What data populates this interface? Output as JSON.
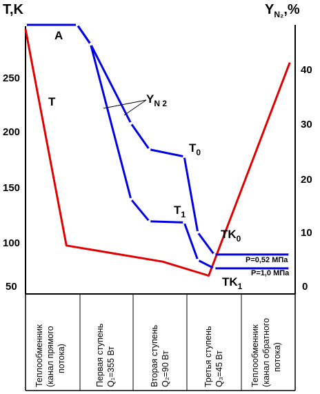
{
  "chart_data": {
    "type": "line",
    "left_axis": {
      "title": "T,K",
      "ticks": [
        "50",
        "100",
        "150",
        "200",
        "250"
      ],
      "ylim": [
        50,
        300
      ]
    },
    "right_axis": {
      "title_main": "Y",
      "title_sub": "N₂",
      "title_unit": ",%",
      "ticks": [
        "0",
        "10",
        "20",
        "30",
        "40"
      ],
      "ylim": [
        0,
        47.5
      ]
    },
    "stages": [
      {
        "id": "hx-forward",
        "lines": [
          "Теплообменник",
          "(канал прямого",
          "потока)"
        ]
      },
      {
        "id": "stage-1",
        "lines": [
          "Первая ступень",
          "Q₁=355 Вт"
        ]
      },
      {
        "id": "stage-2",
        "lines": [
          "Вторая ступень",
          "Q₂=90 Вт"
        ]
      },
      {
        "id": "stage-3",
        "lines": [
          "Третья ступень",
          "Q₃=45 Вт"
        ]
      },
      {
        "id": "hx-return",
        "lines": [
          "Теплообменник",
          "(канал обратного",
          "потока)"
        ]
      }
    ],
    "series": [
      {
        "name": "T",
        "color": "#e00000",
        "axis": "left",
        "points": [
          [
            0,
            296
          ],
          [
            0.75,
            95
          ],
          [
            2.55,
            80
          ],
          [
            3.4,
            67
          ],
          [
            4.9,
            265
          ]
        ]
      },
      {
        "name": "Y_N2 (P=0.52 MPa)",
        "color": "#0000e0",
        "axis": "right",
        "points": [
          [
            0,
            47.5
          ],
          [
            0.95,
            47.5
          ],
          [
            1.2,
            44
          ],
          [
            1.96,
            29.7
          ],
          [
            2.3,
            25
          ],
          [
            2.95,
            23.7
          ],
          [
            3.2,
            10
          ],
          [
            3.5,
            6
          ],
          [
            4.9,
            6
          ]
        ]
      },
      {
        "name": "Y_N2 (P=1.0 MPa)",
        "color": "#0000e0",
        "axis": "right",
        "points": [
          [
            0.95,
            47.5
          ],
          [
            1.2,
            44
          ],
          [
            1.96,
            16
          ],
          [
            2.3,
            12
          ],
          [
            2.95,
            11.8
          ],
          [
            3.2,
            5
          ],
          [
            3.5,
            3.5
          ],
          [
            4.9,
            3.5
          ]
        ]
      }
    ],
    "annotations": {
      "A": "A",
      "T_label": "T",
      "Y_main": "Y",
      "Y_sub": "N 2",
      "T0_main": "T",
      "T0_sub": "0",
      "T1_main": "T",
      "T1_sub": "1",
      "TK0_main": "TK",
      "TK0_sub": "0",
      "TK1_main": "TK",
      "TK1_sub": "1",
      "p_low": "P=0,52 МПа",
      "p_high": "P=1,0 МПа"
    },
    "colors": {
      "temperature": "#e00000",
      "concentration": "#0000e0",
      "frame": "#000000"
    }
  }
}
